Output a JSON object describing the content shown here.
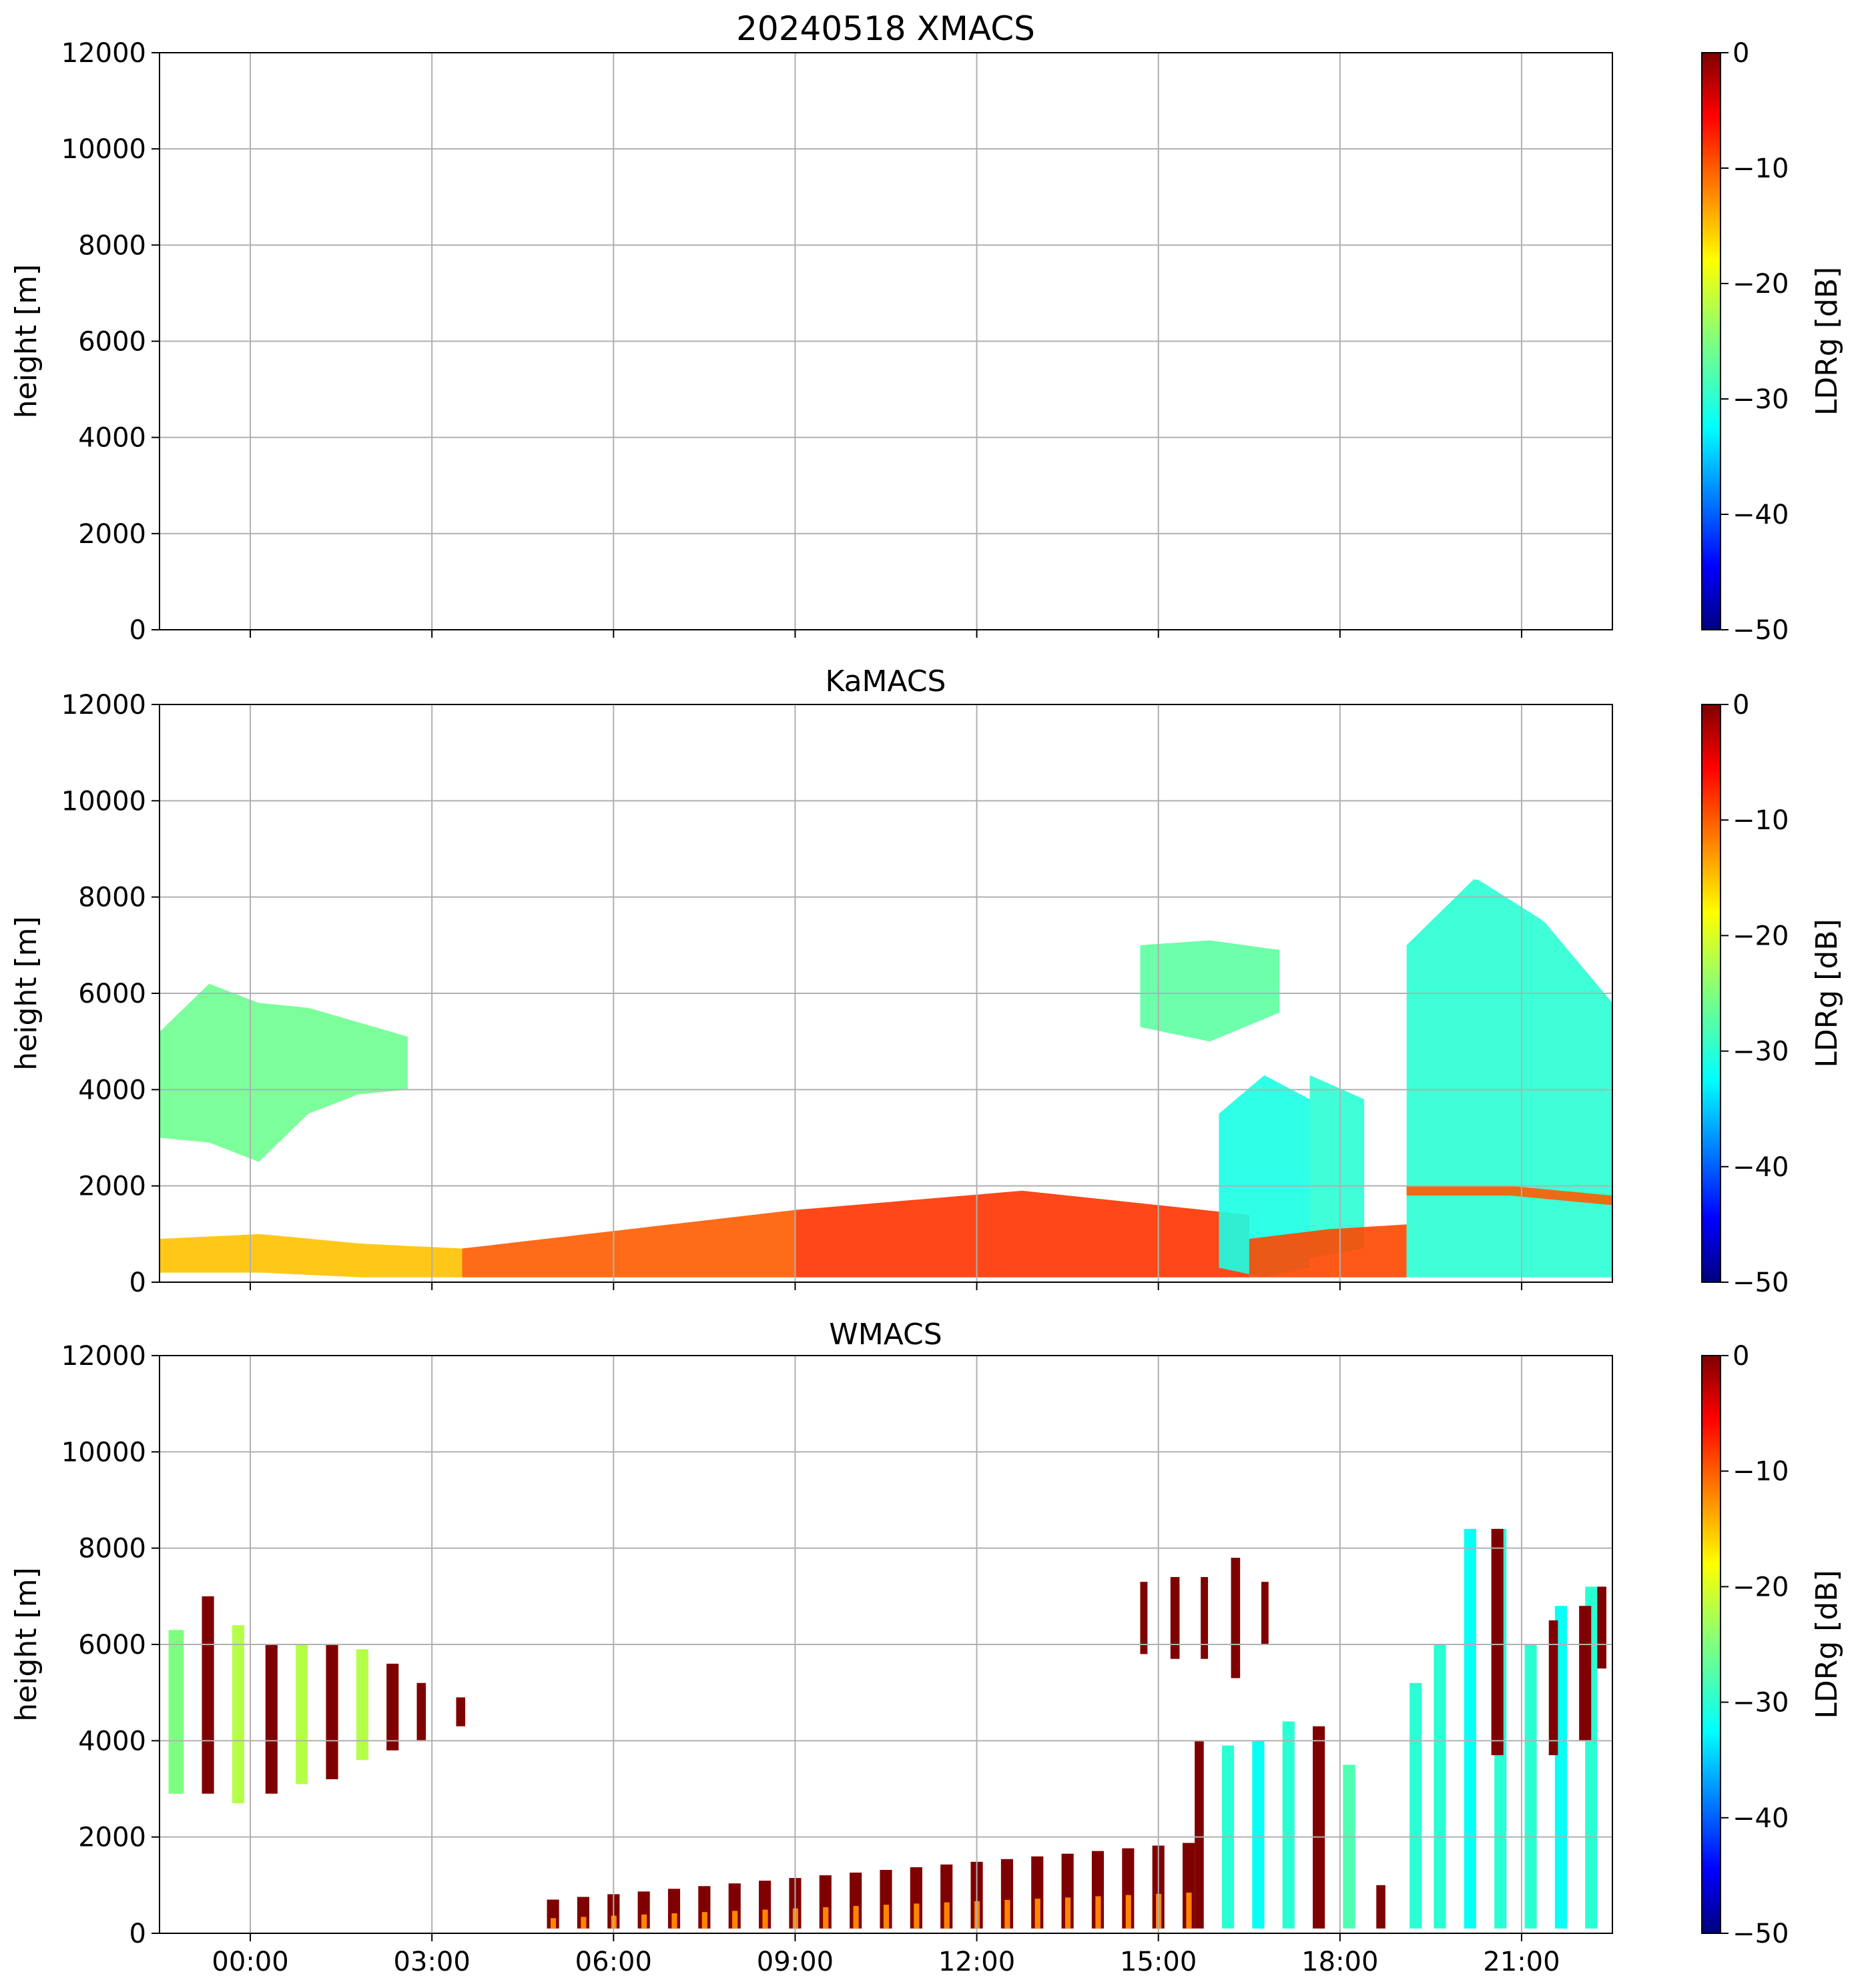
{
  "figure": {
    "date_title": "20240518 XMACS"
  },
  "chart_data": [
    {
      "type": "heatmap",
      "title": "20240518 XMACS",
      "xlabel": "",
      "ylabel": "height [m]",
      "ylim": [
        0,
        12000
      ],
      "yticks": [
        "0",
        "2000",
        "4000",
        "6000",
        "8000",
        "10000",
        "12000"
      ],
      "xlim_hours": [
        -1.5,
        22.5
      ],
      "xticks": [
        "00:00",
        "03:00",
        "06:00",
        "09:00",
        "12:00",
        "15:00",
        "18:00",
        "21:00"
      ],
      "xtick_labels_visible": false,
      "colorbar": {
        "label": "LDRg [dB]",
        "range": [
          -50,
          0
        ],
        "ticks": [
          "0",
          "−10",
          "−20",
          "−30",
          "−40",
          "−50"
        ]
      },
      "grid": true,
      "regions": []
    },
    {
      "type": "heatmap",
      "title": "KaMACS",
      "xlabel": "",
      "ylabel": "height [m]",
      "ylim": [
        0,
        12000
      ],
      "yticks": [
        "0",
        "2000",
        "4000",
        "6000",
        "8000",
        "10000",
        "12000"
      ],
      "xlim_hours": [
        -1.5,
        22.5
      ],
      "xticks": [
        "00:00",
        "03:00",
        "06:00",
        "09:00",
        "12:00",
        "15:00",
        "18:00",
        "21:00"
      ],
      "xtick_labels_visible": false,
      "colorbar": {
        "label": "LDRg [dB]",
        "range": [
          -50,
          0
        ],
        "ticks": [
          "0",
          "−10",
          "−20",
          "−30",
          "−40",
          "−50"
        ]
      },
      "grid": true,
      "regions": [
        {
          "name": "early-ice-cloud",
          "t0": -1.5,
          "t1": 2.6,
          "bottom": [
            3000,
            2900,
            2500,
            3500,
            3900,
            4000
          ],
          "top": [
            5200,
            6200,
            5800,
            5700,
            5400,
            5100
          ],
          "ldr": -26
        },
        {
          "name": "boundary-layer-morning",
          "t0": -1.5,
          "t1": 3.5,
          "bottom": [
            200,
            200,
            100,
            100
          ],
          "top": [
            900,
            1000,
            800,
            700
          ],
          "ldr": -15
        },
        {
          "name": "boundary-layer-rise",
          "t0": 3.5,
          "t1": 9.0,
          "bottom": [
            100,
            100,
            100
          ],
          "top": [
            700,
            1100,
            1500
          ],
          "ldr": -10
        },
        {
          "name": "boundary-layer-afternoon",
          "t0": 9.0,
          "t1": 16.5,
          "bottom": [
            100,
            100,
            100
          ],
          "top": [
            1500,
            1900,
            1400
          ],
          "ldr": -8
        },
        {
          "name": "convective-tower-1",
          "t0": 16.0,
          "t1": 17.5,
          "bottom": [
            300,
            100,
            300
          ],
          "top": [
            3500,
            4300,
            3800
          ],
          "ldr": -31
        },
        {
          "name": "convective-tower-2",
          "t0": 17.5,
          "t1": 18.4,
          "bottom": [
            500,
            700
          ],
          "top": [
            4300,
            3800
          ],
          "ldr": -30
        },
        {
          "name": "mid-level-ice",
          "t0": 14.7,
          "t1": 17.0,
          "bottom": [
            5300,
            5000,
            5600
          ],
          "top": [
            7000,
            7100,
            6900
          ],
          "ldr": -27
        },
        {
          "name": "boundary-layer-evening",
          "t0": 16.5,
          "t1": 19.1,
          "bottom": [
            100,
            100,
            100
          ],
          "top": [
            900,
            1100,
            1200
          ],
          "ldr": -9
        },
        {
          "name": "deep-convection",
          "t0": 19.1,
          "t1": 22.5,
          "bottom": [
            100,
            100,
            100,
            100
          ],
          "top": [
            7000,
            8400,
            7500,
            5800
          ],
          "ldr": -30
        },
        {
          "name": "melting-layer",
          "t0": 19.1,
          "t1": 22.5,
          "bottom": [
            1800,
            1800,
            1600
          ],
          "top": [
            2000,
            2000,
            1800
          ],
          "ldr": -10
        }
      ]
    },
    {
      "type": "heatmap",
      "title": "WMACS",
      "xlabel": "",
      "ylabel": "height [m]",
      "ylim": [
        0,
        12000
      ],
      "yticks": [
        "0",
        "2000",
        "4000",
        "6000",
        "8000",
        "10000",
        "12000"
      ],
      "xlim_hours": [
        -1.5,
        22.5
      ],
      "xticks": [
        "00:00",
        "03:00",
        "06:00",
        "09:00",
        "12:00",
        "15:00",
        "18:00",
        "21:00"
      ],
      "xtick_labels_visible": true,
      "colorbar": {
        "label": "LDRg [dB]",
        "range": [
          -50,
          0
        ],
        "ticks": [
          "0",
          "−10",
          "−20",
          "−30",
          "−40",
          "−50"
        ]
      },
      "grid": true,
      "columns": [
        {
          "t": -1.35,
          "w": 0.25,
          "bottom": 2900,
          "top": 6300,
          "ldr": -25
        },
        {
          "t": -0.8,
          "w": 0.2,
          "bottom": 2900,
          "top": 7000,
          "ldr": 0
        },
        {
          "t": -0.3,
          "w": 0.2,
          "bottom": 2700,
          "top": 6400,
          "ldr": -22
        },
        {
          "t": 0.25,
          "w": 0.2,
          "bottom": 2900,
          "top": 6000,
          "ldr": 0
        },
        {
          "t": 0.75,
          "w": 0.2,
          "bottom": 3100,
          "top": 6000,
          "ldr": -22
        },
        {
          "t": 1.25,
          "w": 0.2,
          "bottom": 3200,
          "top": 6000,
          "ldr": 0
        },
        {
          "t": 1.75,
          "w": 0.2,
          "bottom": 3600,
          "top": 5900,
          "ldr": -22
        },
        {
          "t": 2.25,
          "w": 0.2,
          "bottom": 3800,
          "top": 5600,
          "ldr": 0
        },
        {
          "t": 2.75,
          "w": 0.15,
          "bottom": 4000,
          "top": 5200,
          "ldr": 0
        },
        {
          "t": 3.4,
          "w": 0.15,
          "bottom": 4300,
          "top": 4900,
          "ldr": 0
        },
        {
          "t": 14.7,
          "w": 0.12,
          "bottom": 5800,
          "top": 7300,
          "ldr": 0
        },
        {
          "t": 15.2,
          "w": 0.15,
          "bottom": 5700,
          "top": 7400,
          "ldr": 0
        },
        {
          "t": 15.7,
          "w": 0.12,
          "bottom": 5700,
          "top": 7400,
          "ldr": 0
        },
        {
          "t": 16.2,
          "w": 0.15,
          "bottom": 5300,
          "top": 7800,
          "ldr": 0
        },
        {
          "t": 16.7,
          "w": 0.12,
          "bottom": 6000,
          "top": 7300,
          "ldr": 0
        },
        {
          "t": 15.6,
          "w": 0.15,
          "bottom": 100,
          "top": 4000,
          "ldr": 0
        },
        {
          "t": 16.05,
          "w": 0.2,
          "bottom": 100,
          "top": 3900,
          "ldr": -30
        },
        {
          "t": 16.55,
          "w": 0.2,
          "bottom": 100,
          "top": 4000,
          "ldr": -32
        },
        {
          "t": 17.05,
          "w": 0.2,
          "bottom": 100,
          "top": 4400,
          "ldr": -30
        },
        {
          "t": 17.55,
          "w": 0.2,
          "bottom": 100,
          "top": 4300,
          "ldr": 0
        },
        {
          "t": 18.05,
          "w": 0.2,
          "bottom": 100,
          "top": 3500,
          "ldr": -28
        },
        {
          "t": 18.6,
          "w": 0.15,
          "bottom": 100,
          "top": 1000,
          "ldr": 0
        },
        {
          "t": 19.15,
          "w": 0.2,
          "bottom": 100,
          "top": 5200,
          "ldr": -30
        },
        {
          "t": 19.55,
          "w": 0.2,
          "bottom": 100,
          "top": 6000,
          "ldr": -30
        },
        {
          "t": 20.05,
          "w": 0.2,
          "bottom": 100,
          "top": 8400,
          "ldr": -32
        },
        {
          "t": 20.55,
          "w": 0.2,
          "bottom": 100,
          "top": 8400,
          "ldr": -30
        },
        {
          "t": 21.05,
          "w": 0.2,
          "bottom": 100,
          "top": 6000,
          "ldr": -30
        },
        {
          "t": 21.55,
          "w": 0.2,
          "bottom": 100,
          "top": 6800,
          "ldr": -32
        },
        {
          "t": 22.05,
          "w": 0.2,
          "bottom": 100,
          "top": 7200,
          "ldr": -30
        },
        {
          "t": 20.5,
          "w": 0.2,
          "bottom": 3700,
          "top": 8400,
          "ldr": 0
        },
        {
          "t": 21.45,
          "w": 0.15,
          "bottom": 3700,
          "top": 6500,
          "ldr": 0
        },
        {
          "t": 21.95,
          "w": 0.2,
          "bottom": 4000,
          "top": 6800,
          "ldr": 0
        },
        {
          "t": 22.25,
          "w": 0.15,
          "bottom": 5500,
          "top": 7200,
          "ldr": 0
        }
      ],
      "precip_columns": {
        "t0": 4.9,
        "t1": 15.6,
        "spacing": 0.5,
        "w": 0.2,
        "bottom": 100,
        "top_start": 700,
        "top_end": 1900,
        "ldr": 0,
        "inner_ldr": -12
      }
    }
  ]
}
